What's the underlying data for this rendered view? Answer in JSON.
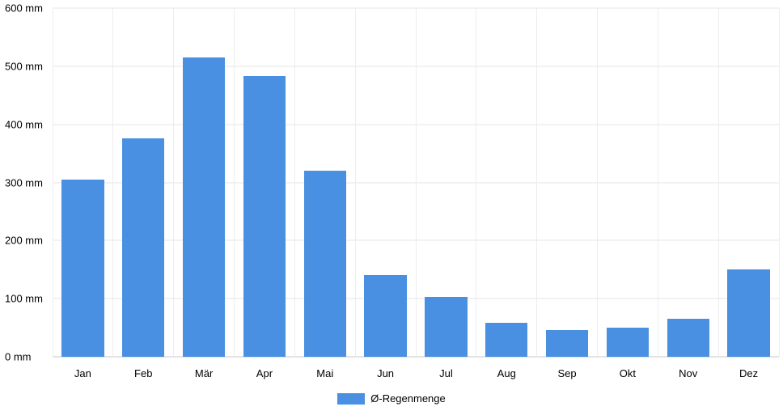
{
  "chart_data": {
    "type": "bar",
    "title": "",
    "categories": [
      "Jan",
      "Feb",
      "Mär",
      "Apr",
      "Mai",
      "Jun",
      "Jul",
      "Aug",
      "Sep",
      "Okt",
      "Nov",
      "Dez"
    ],
    "values": [
      305,
      376,
      515,
      483,
      320,
      140,
      103,
      58,
      46,
      50,
      66,
      151
    ],
    "series_name": "Ø-Regenmenge",
    "unit": "mm",
    "ylim": [
      0,
      600
    ],
    "ytick_step": 100,
    "ytick_labels": [
      "0 mm",
      "100 mm",
      "200 mm",
      "300 mm",
      "400 mm",
      "500 mm",
      "600 mm"
    ],
    "xlabel": "",
    "ylabel": "",
    "grid": true,
    "legend_position": "bottom",
    "bar_color": "#4a90e2",
    "gridline_color": "#e6e6e6",
    "background_color": "#ffffff"
  },
  "legend": {
    "label": "Ø-Regenmenge"
  }
}
